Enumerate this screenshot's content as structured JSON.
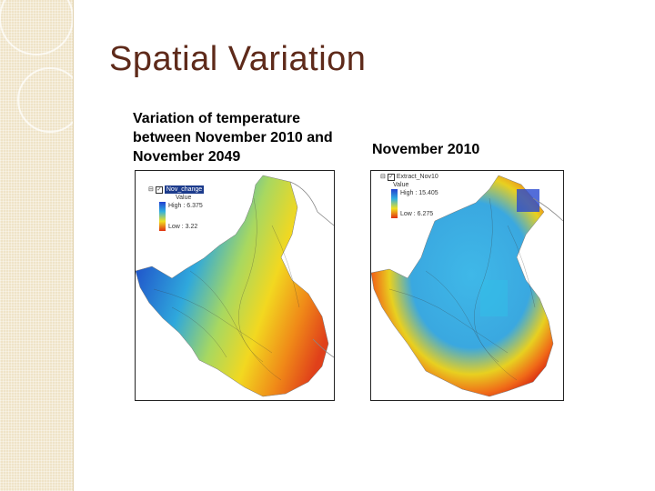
{
  "slide": {
    "title": "Spatial Variation",
    "caption_left": "Variation of temperature between November 2010 and November 2049",
    "caption_right": "November 2010"
  },
  "map_left": {
    "legend_layer": "Nov_change",
    "legend_field": "Value",
    "legend_high": "High : 6.375",
    "legend_low": "Low : 3.22",
    "colors": {
      "high": "#e03010",
      "low": "#2040d0"
    }
  },
  "map_right": {
    "legend_layer": "Extract_Nov10",
    "legend_field": "Value",
    "legend_high": "High : 15.405",
    "legend_low": "Low : 6.275",
    "colors": {
      "high": "#e03010",
      "low": "#2040d0"
    }
  }
}
